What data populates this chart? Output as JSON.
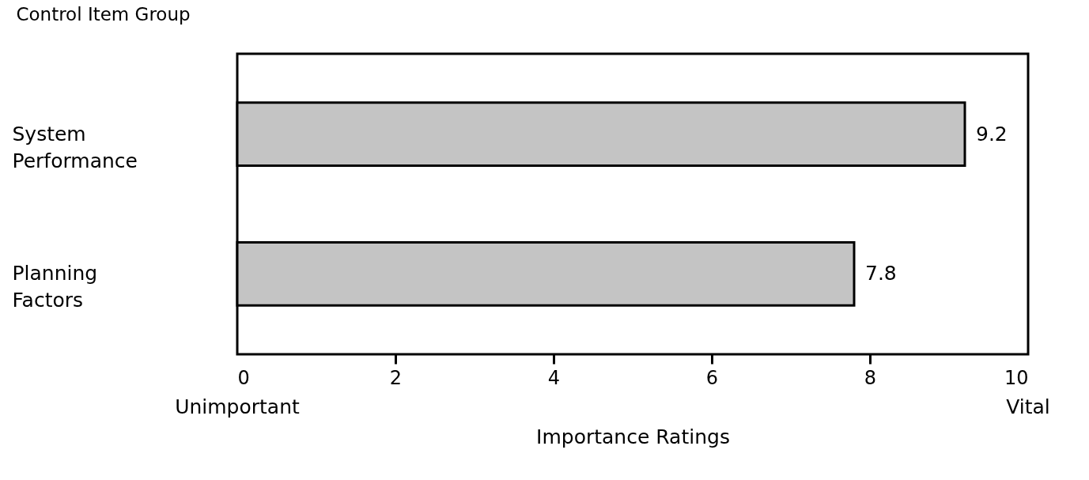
{
  "chart_data": {
    "type": "bar",
    "orientation": "horizontal",
    "ylabel": "Control Item Group",
    "xlabel": "Importance Ratings",
    "categories": [
      "System Performance",
      "Planning Factors"
    ],
    "values": [
      9.2,
      7.8
    ],
    "color": "#c4c4c4",
    "data_labels": true,
    "xlim": [
      0,
      10
    ],
    "xticks": [
      0,
      2,
      4,
      6,
      8,
      10
    ],
    "grid": false,
    "annotations": [
      "Unimportant",
      "Vital"
    ]
  }
}
